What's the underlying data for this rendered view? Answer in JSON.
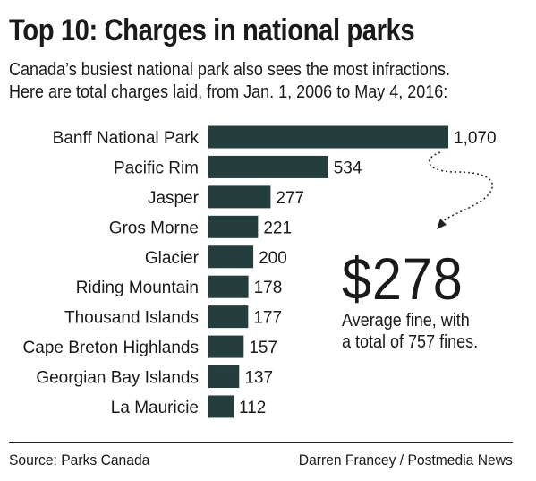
{
  "header": {
    "title": "Top 10: Charges in national parks",
    "subtitle_line1": "Canada’s busiest national park also sees the most infractions.",
    "subtitle_line2": "Here are total charges laid, from Jan. 1, 2006 to May 4, 2016:"
  },
  "chart_data": {
    "type": "bar",
    "orientation": "horizontal",
    "categories": [
      "Banff National Park",
      "Pacific Rim",
      "Jasper",
      "Gros Morne",
      "Glacier",
      "Riding Mountain",
      "Thousand Islands",
      "Cape Breton Highlands",
      "Georgian Bay Islands",
      "La Mauricie"
    ],
    "values": [
      1070,
      534,
      277,
      221,
      200,
      178,
      177,
      157,
      137,
      112
    ],
    "value_labels": [
      "1,070",
      "534",
      "277",
      "221",
      "200",
      "178",
      "177",
      "157",
      "137",
      "112"
    ],
    "bar_color": "#243d3d",
    "grid": false,
    "legend": "none"
  },
  "callout": {
    "amount": "$278",
    "line1": "Average fine, with",
    "line2": "a total of 757 fines."
  },
  "footer": {
    "source": "Source: Parks Canada",
    "credit": "Darren Francey / Postmedia News"
  }
}
